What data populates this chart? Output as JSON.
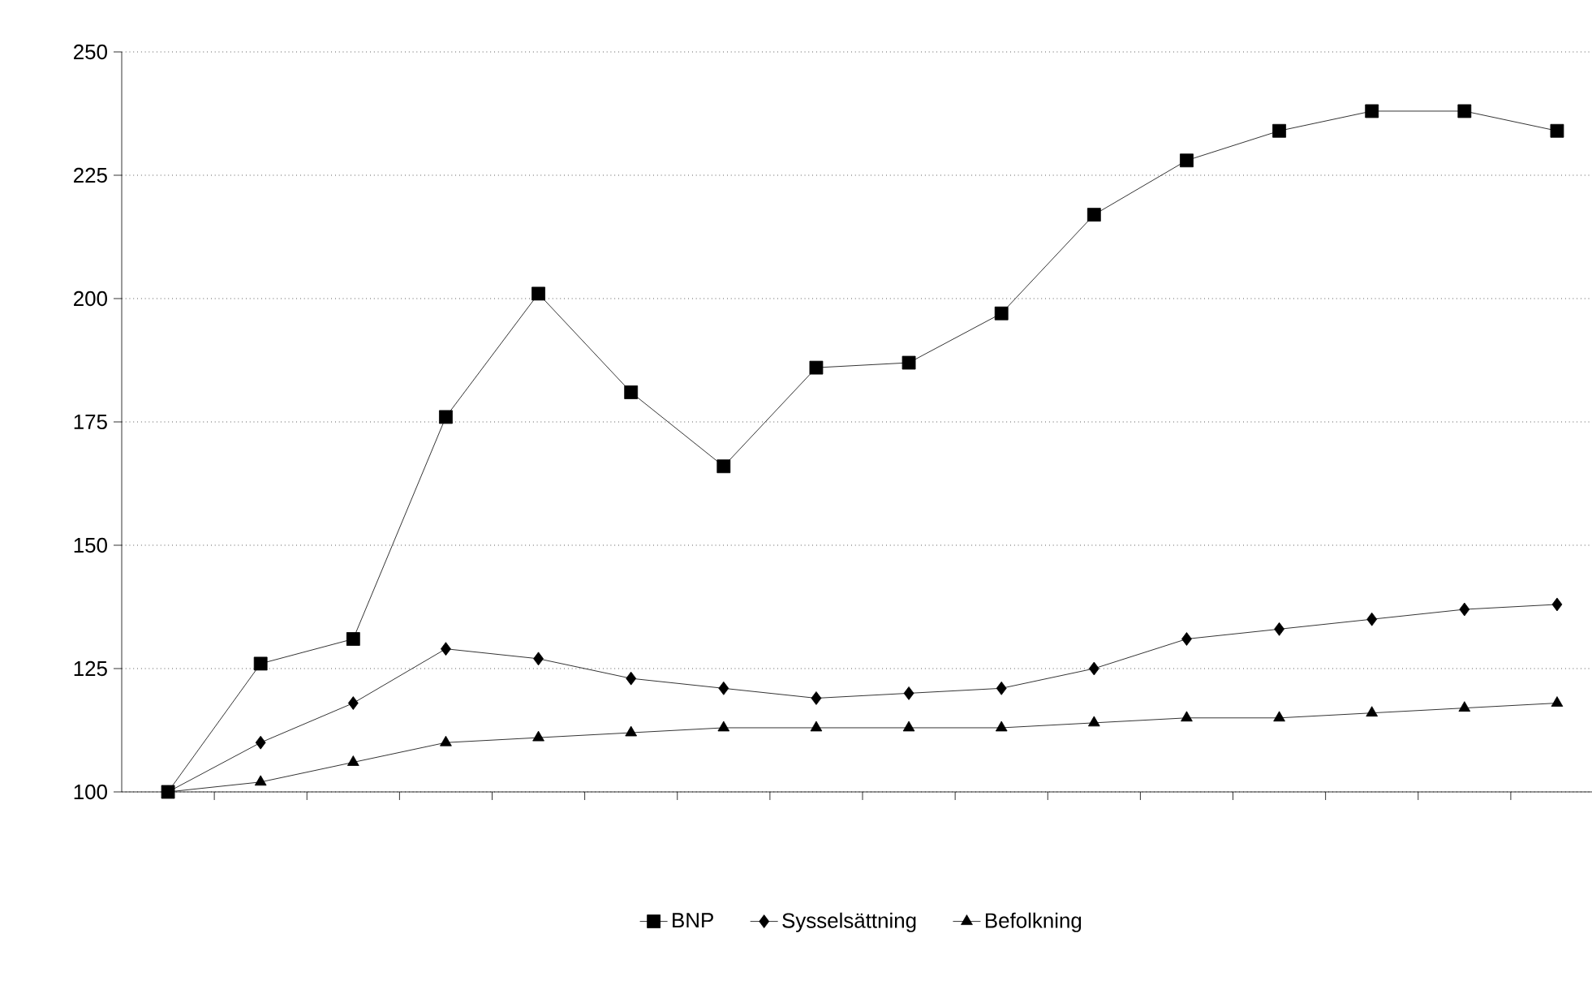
{
  "chart_data": {
    "type": "line",
    "categories": [
      null,
      null,
      null,
      null,
      null,
      null,
      null,
      null,
      null,
      null,
      null,
      null,
      null,
      null,
      null,
      null
    ],
    "series": [
      {
        "name": "BNP",
        "color": "#000000",
        "marker": "square",
        "values": [
          100,
          126,
          131,
          176,
          201,
          181,
          166,
          186,
          187,
          197,
          217,
          228,
          234,
          238,
          238,
          234
        ]
      },
      {
        "name": "Sysselsättning",
        "color": "#000000",
        "marker": "diamond",
        "values": [
          100,
          110,
          118,
          129,
          127,
          123,
          121,
          119,
          120,
          121,
          125,
          131,
          133,
          135,
          137,
          138
        ]
      },
      {
        "name": "Befolkning",
        "color": "#000000",
        "marker": "triangle",
        "values": [
          100,
          102,
          106,
          110,
          111,
          112,
          113,
          113,
          113,
          113,
          114,
          115,
          115,
          116,
          117,
          118
        ]
      }
    ],
    "ylim": [
      100,
      250
    ],
    "yticks": [
      100,
      125,
      150,
      175,
      200,
      225,
      250
    ],
    "grid": "y",
    "legend": "bottom"
  }
}
